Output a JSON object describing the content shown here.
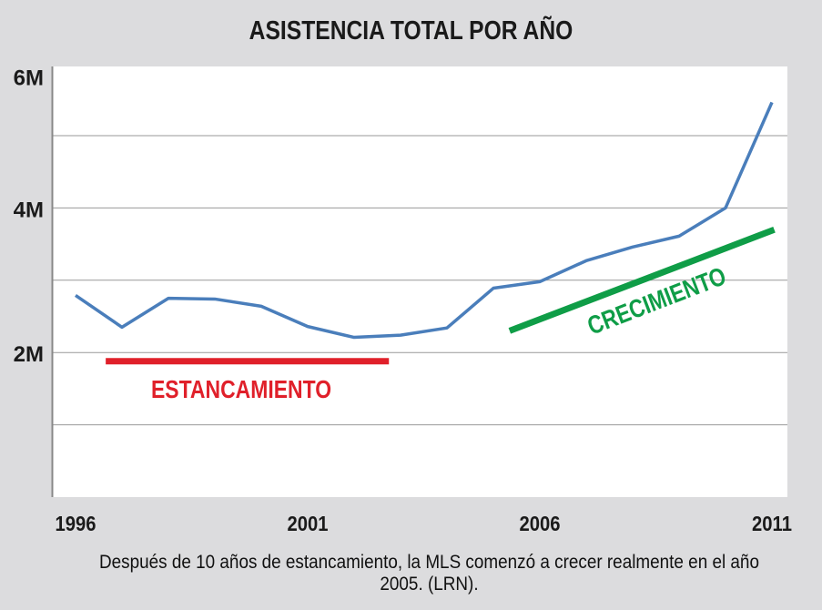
{
  "chart_data": {
    "type": "line",
    "title": "ASISTENCIA TOTAL POR AÑO",
    "x": [
      1996,
      1997,
      1998,
      1999,
      2000,
      2001,
      2002,
      2003,
      2004,
      2005,
      2006,
      2007,
      2008,
      2009,
      2010,
      2011
    ],
    "series": [
      {
        "values": [
          2.79,
          2.35,
          2.75,
          2.74,
          2.64,
          2.36,
          2.21,
          2.24,
          2.34,
          2.89,
          2.98,
          3.27,
          3.46,
          3.61,
          4.0,
          5.46
        ],
        "color": "#4a7ebb"
      }
    ],
    "x_tick_labels": [
      "1996",
      "2001",
      "2006",
      "2011"
    ],
    "y_tick_labels": [
      "2M",
      "4M",
      "6M"
    ],
    "ylim": [
      0,
      6
    ],
    "y_unit": "millones",
    "grid": true,
    "annotations": [
      {
        "text": "ESTANCAMIENTO",
        "color": "#e0202a",
        "from": [
          1996.65,
          1.88
        ],
        "to": [
          2002.75,
          1.88
        ]
      },
      {
        "text": "CRECIMIENTO",
        "color": "#0f9d47",
        "from": [
          2005.35,
          2.3
        ],
        "to": [
          2011.05,
          3.7
        ]
      }
    ]
  },
  "caption": "Después de 10 años de estancamiento, la MLS comenzó a crecer realmente en el año 2005. (LRN)."
}
